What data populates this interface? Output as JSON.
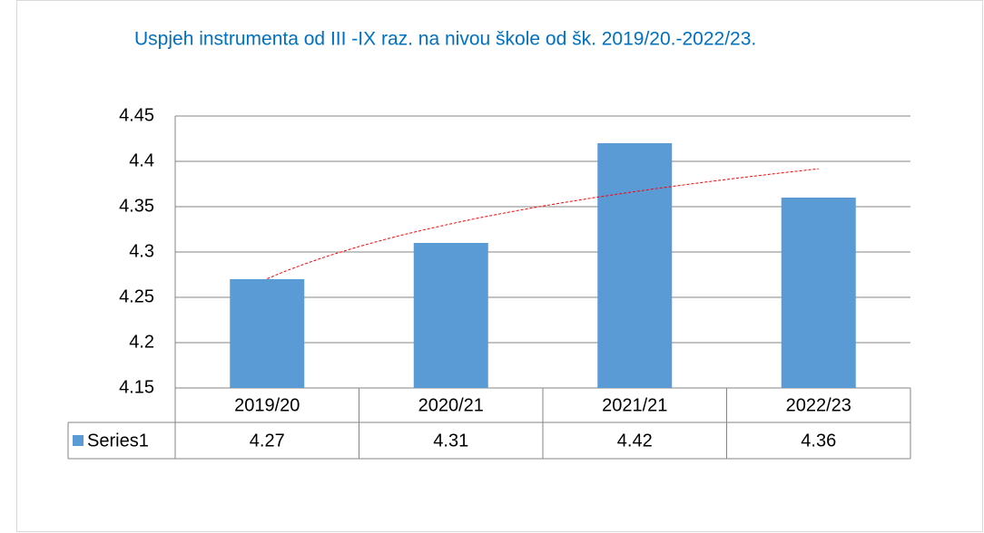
{
  "chart_data": {
    "type": "bar",
    "title": "Uspjeh instrumenta od III -IX raz.  na nivou škole  od  šk.  2019/20.-2022/23.",
    "categories": [
      "2019/20",
      "2020/21",
      "2021/21",
      "2022/23"
    ],
    "series": [
      {
        "name": "Series1",
        "color": "#5b9bd5",
        "values": [
          4.27,
          4.31,
          4.42,
          4.36
        ]
      }
    ],
    "ylim": [
      4.15,
      4.45
    ],
    "yticks": [
      4.15,
      4.2,
      4.25,
      4.3,
      4.35,
      4.4,
      4.45
    ],
    "grid": true,
    "data_table": true,
    "trendline": {
      "type": "logarithmic",
      "color": "#ff0000"
    }
  }
}
